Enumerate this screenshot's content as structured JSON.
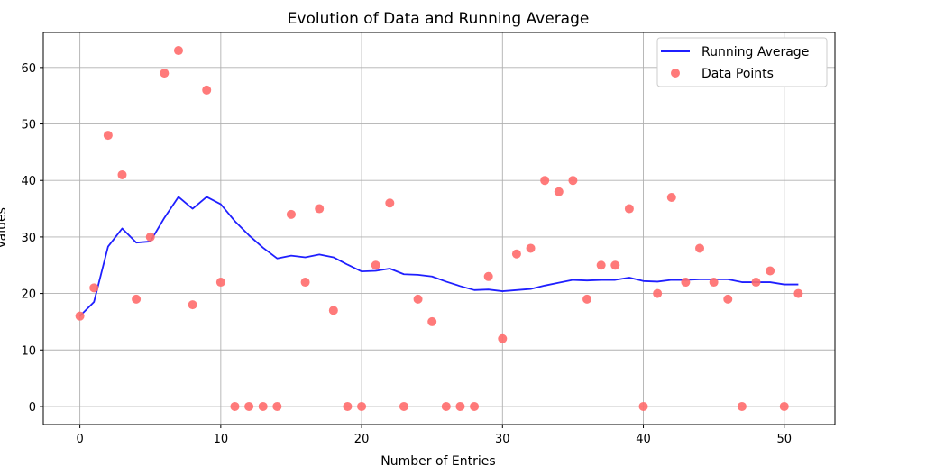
{
  "chart_data": {
    "type": "line",
    "title": "Evolution of Data and Running Average",
    "xlabel": "Number of Entries",
    "ylabel": "Values",
    "xlim": [
      -2.6,
      53.6
    ],
    "ylim": [
      -3.2,
      66.2
    ],
    "xticks": [
      0,
      10,
      20,
      30,
      40,
      50
    ],
    "yticks": [
      0,
      10,
      20,
      30,
      40,
      50,
      60
    ],
    "grid": true,
    "legend_placement": "top-right",
    "x": [
      0,
      1,
      2,
      3,
      4,
      5,
      6,
      7,
      8,
      9,
      10,
      11,
      12,
      13,
      14,
      15,
      16,
      17,
      18,
      19,
      20,
      21,
      22,
      23,
      24,
      25,
      26,
      27,
      28,
      29,
      30,
      31,
      32,
      33,
      34,
      35,
      36,
      37,
      38,
      39,
      40,
      41,
      42,
      43,
      44,
      45,
      46,
      47,
      48,
      49,
      50,
      51
    ],
    "series": [
      {
        "name": "Running Average",
        "kind": "line",
        "color": "#1f1fff",
        "values": [
          16,
          18.5,
          28.3,
          31.5,
          29,
          29.2,
          33.4,
          37.1,
          35,
          37.1,
          35.8,
          32.8,
          30.3,
          28.1,
          26.2,
          26.7,
          26.4,
          26.9,
          26.4,
          25.1,
          23.9,
          24,
          24.4,
          23.4,
          23.3,
          23,
          22.1,
          21.3,
          20.6,
          20.7,
          20.4,
          20.6,
          20.8,
          21.4,
          21.9,
          22.4,
          22.3,
          22.4,
          22.4,
          22.8,
          22.2,
          22.1,
          22.4,
          22.4,
          22.5,
          22.5,
          22.5,
          22,
          22,
          22,
          21.6,
          21.6
        ]
      },
      {
        "name": "Data Points",
        "kind": "scatter",
        "color": "#ff6b6b",
        "values": [
          16,
          21,
          48,
          41,
          19,
          30,
          59,
          63,
          18,
          56,
          22,
          0,
          0,
          0,
          0,
          34,
          22,
          35,
          17,
          0,
          0,
          25,
          36,
          0,
          19,
          15,
          0,
          0,
          0,
          23,
          12,
          27,
          28,
          40,
          38,
          40,
          19,
          25,
          25,
          35,
          0,
          20,
          37,
          22,
          28,
          22,
          19,
          0,
          22,
          24,
          0,
          20
        ]
      }
    ]
  }
}
